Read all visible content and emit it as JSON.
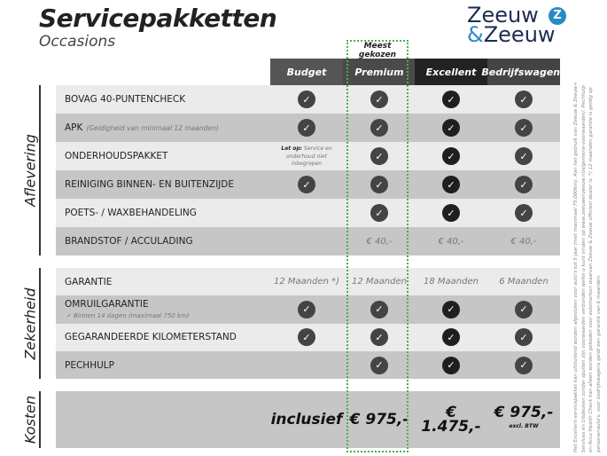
{
  "header": {
    "title": "Servicepakketten",
    "subtitle": "Occasions",
    "logo_text": "Zeeuw & Zeeuw",
    "highlight_label": "Meest gekozen"
  },
  "columns": [
    {
      "label": "Budget",
      "color": "#555555"
    },
    {
      "label": "Premium",
      "color": "#4a4a4a"
    },
    {
      "label": "Excellent",
      "color": "#222222"
    },
    {
      "label": "Bedrijfswagens",
      "color": "#444444"
    }
  ],
  "sections": [
    {
      "label": "Aflevering",
      "rows": [
        {
          "label": "BOVAG 40-PUNTENCHECK",
          "cells": [
            "check",
            "check",
            "check",
            "check"
          ]
        },
        {
          "label": "APK",
          "note": "(Geldigheid van minimaal 12 maanden)",
          "cells": [
            "check",
            "check",
            "check",
            "check"
          ]
        },
        {
          "label": "ONDERHOUDSPAKKET",
          "cells": [
            "note:Let op:|Service en onderhoud niet inbegrepen",
            "check",
            "check",
            "check"
          ]
        },
        {
          "label": "REINIGING BINNEN- EN BUITENZIJDE",
          "cells": [
            "check",
            "check",
            "check",
            "check"
          ]
        },
        {
          "label": "POETS- / WAXBEHANDELING",
          "cells": [
            "",
            "check",
            "check",
            "check"
          ]
        },
        {
          "label": "BRANDSTOF / ACCULADING",
          "cells": [
            "",
            "€ 40,-",
            "€ 40,-",
            "€ 40,-"
          ]
        }
      ]
    },
    {
      "label": "Zekerheid",
      "rows": [
        {
          "label": "GARANTIE",
          "cells": [
            "12 Maanden *)",
            "12 Maanden",
            "18 Maanden",
            "6 Maanden"
          ]
        },
        {
          "label": "OMRUILGARANTIE",
          "sub": "✓  Binnen 14 dagen (maximaal 750 km)",
          "cells": [
            "check",
            "check",
            "check",
            "check"
          ]
        },
        {
          "label": "GEGARANDEERDE KILOMETERSTAND",
          "cells": [
            "check",
            "check",
            "check",
            "check"
          ]
        },
        {
          "label": "PECHHULP",
          "cells": [
            "",
            "check",
            "check",
            "check"
          ]
        }
      ]
    },
    {
      "label": "Kosten",
      "prices": [
        "inclusief",
        "€ 975,-",
        "€ 1.475,-",
        "€ 975,-"
      ],
      "price_note": "excl. BTW"
    }
  ],
  "footnote": "Het Excellent-servicepakket kan uitsluitend worden afgesloten voor auto's tot 5 jaar (met maximaal 75.000km). Aan het gebruik van Zeeuw & Zeeuw+ Services en Uitdeuken zonder spuiten zijn voorwaarden verbonden welke u kunt vinden op www.zeeuwenzeeuw.nl/algemene-voorwaarden/. Pechhulp en Accu Health Check kan alleen worden geboden voor automerken waarvan Zeeuw & Zeeuw officieel dealer is. *) 12 maanden garantie is geldig op personenauto's, voor bedrijfswagens geldt een garantie van 6 maanden."
}
